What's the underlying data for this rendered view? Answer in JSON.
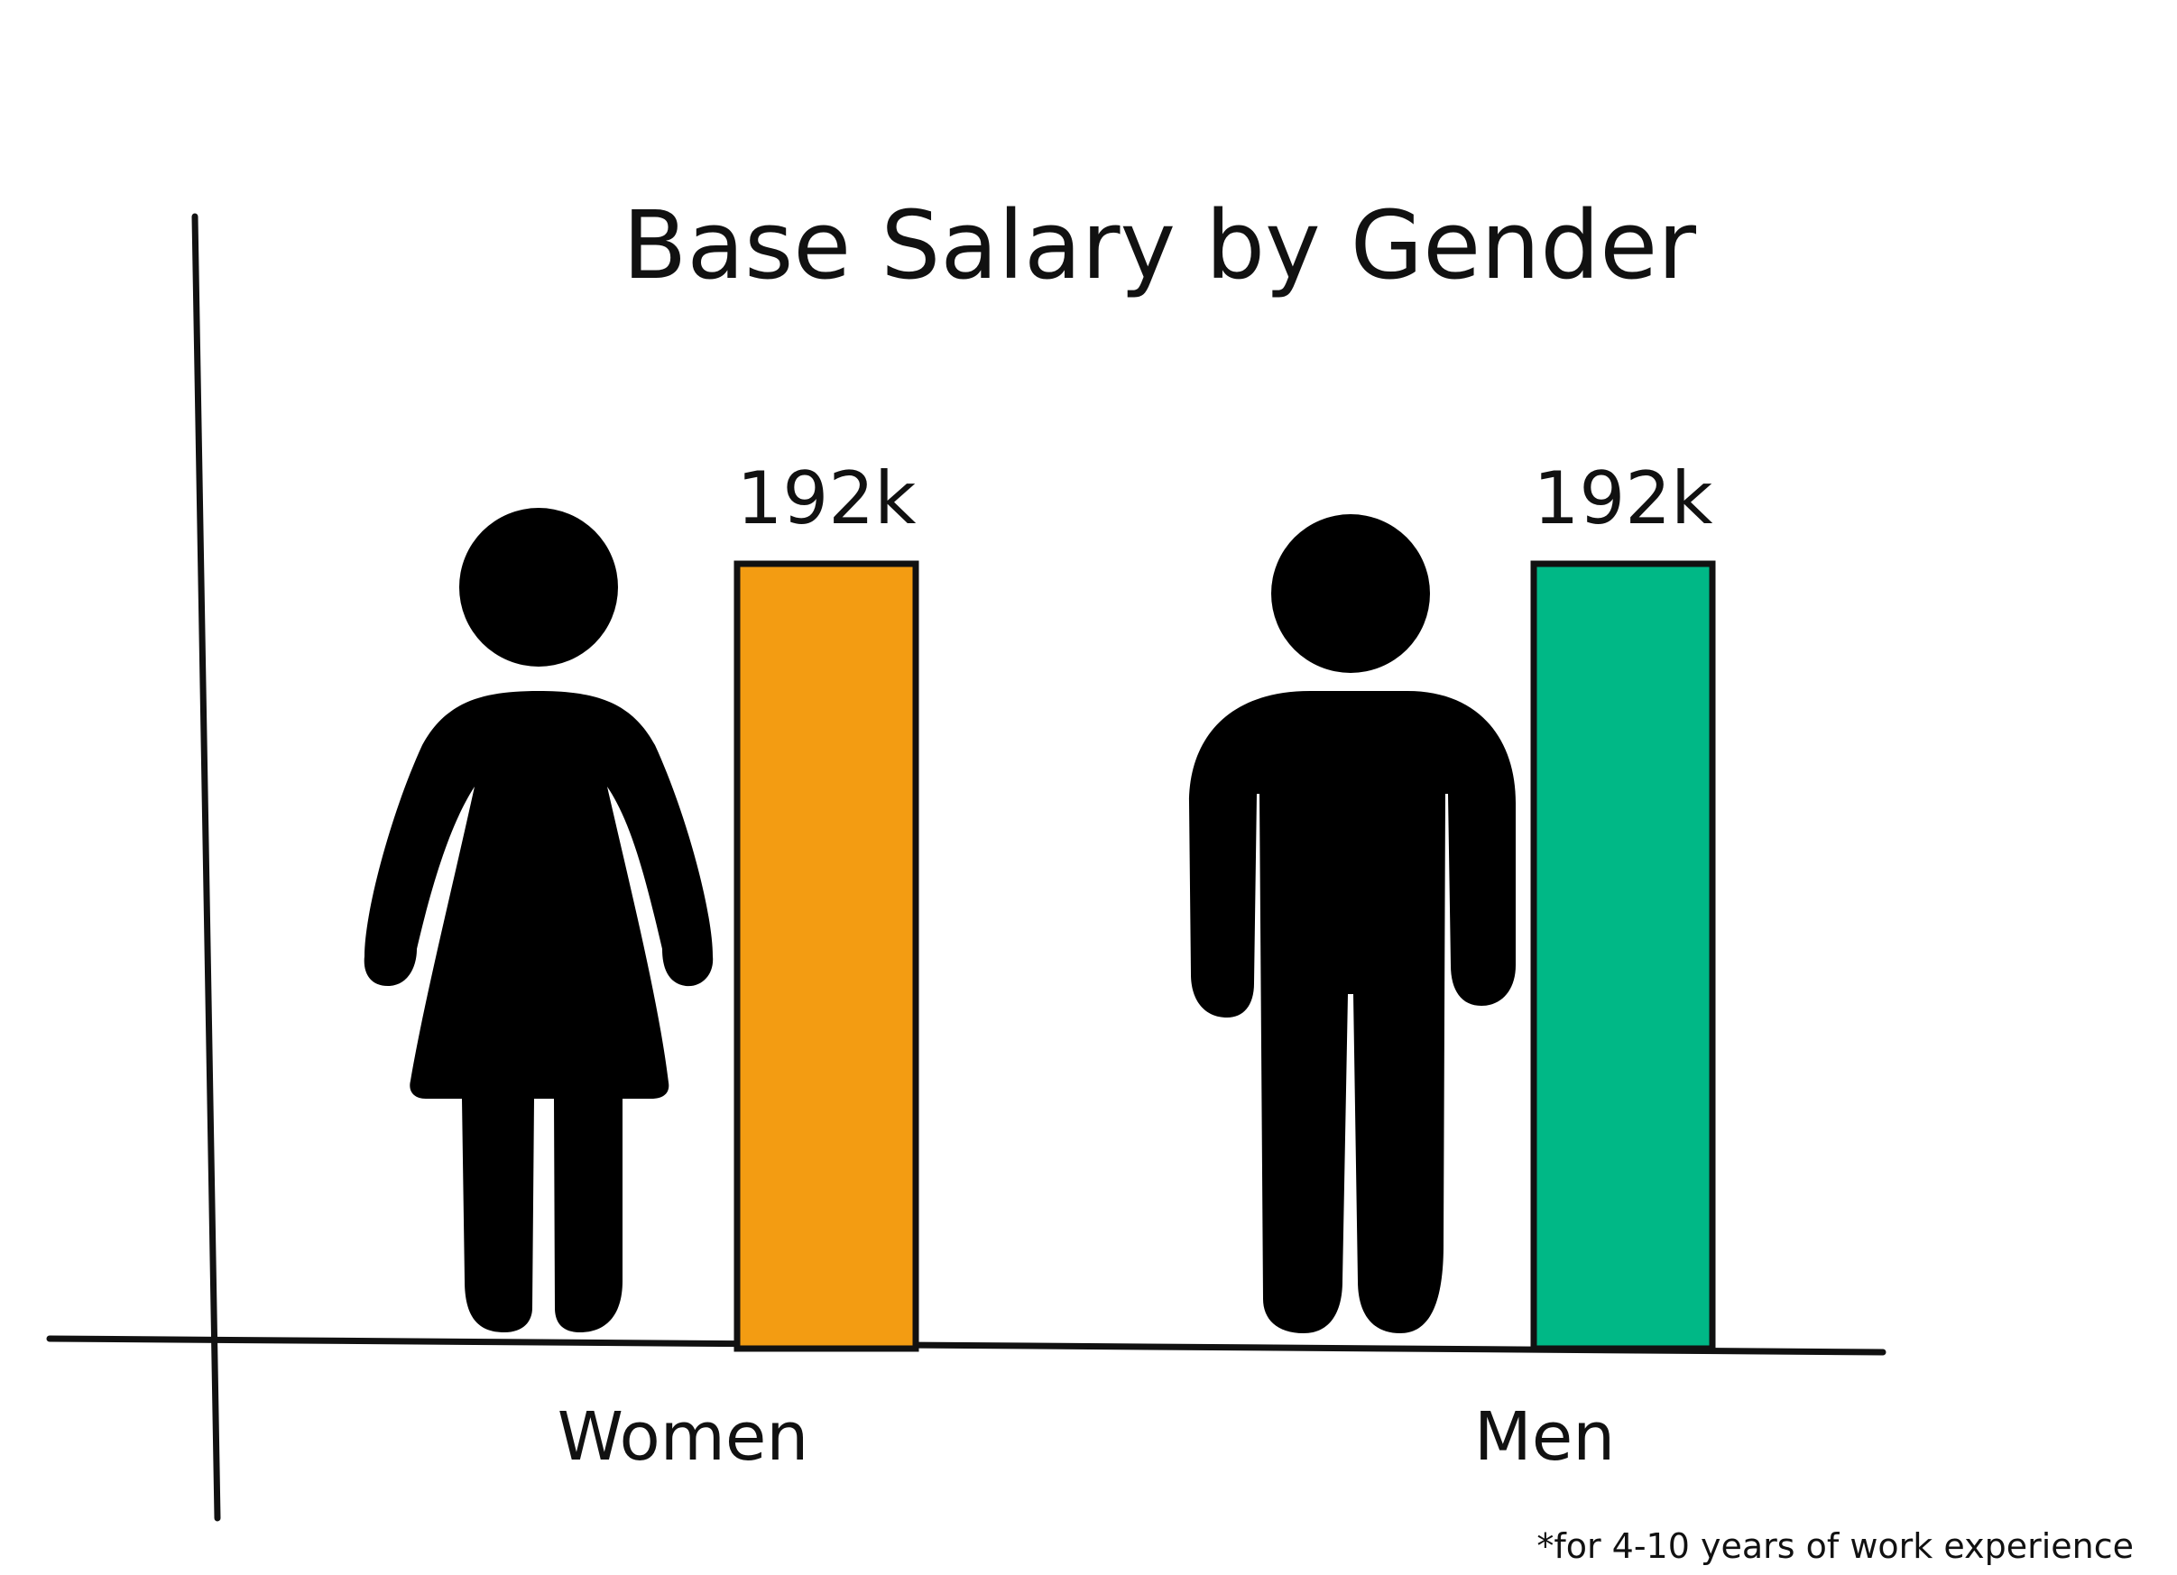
{
  "chart_data": {
    "type": "bar",
    "title": "Base Salary by Gender",
    "categories": [
      "Women",
      "Men"
    ],
    "values": [
      192,
      192
    ],
    "value_labels": [
      "192k",
      "192k"
    ],
    "colors": [
      "#f39c12",
      "#00b886"
    ],
    "icons": [
      "woman-figure-icon",
      "man-figure-icon"
    ],
    "footnote": "*for 4-10 years of work experience",
    "xlabel": "",
    "ylabel": "",
    "grid": false,
    "legend": "none"
  }
}
